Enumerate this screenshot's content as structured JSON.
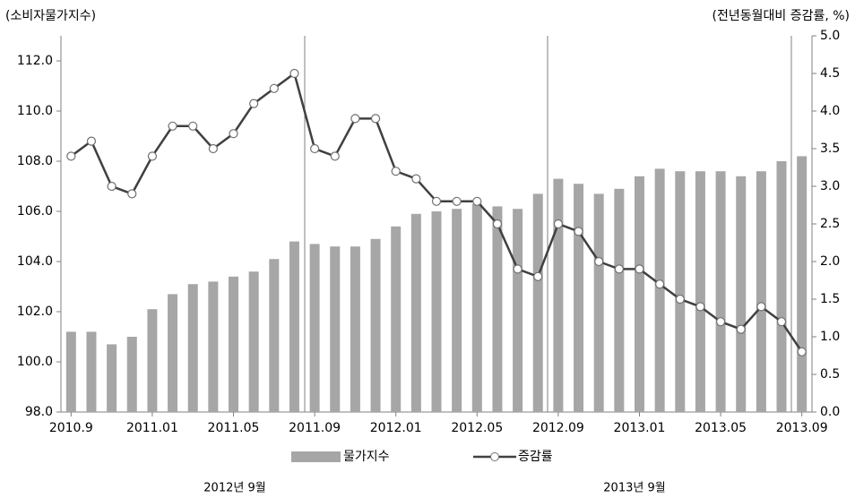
{
  "chart_data": {
    "type": "bar+line",
    "y_title": "(소비자물가지수)",
    "y2_title": "(전년동월대비 증감률, %)",
    "categories": [
      "2010.9",
      null,
      null,
      null,
      "2011.01",
      null,
      null,
      null,
      "2011.05",
      null,
      null,
      null,
      "2011.09",
      null,
      null,
      null,
      "2012.01",
      null,
      null,
      null,
      "2012.05",
      null,
      null,
      null,
      "2012.09",
      null,
      null,
      null,
      "2013.01",
      null,
      null,
      null,
      "2013.05",
      null,
      null,
      null,
      "2013.09"
    ],
    "series": [
      {
        "name": "물가지수",
        "type": "bar",
        "color": "#a6a6a6",
        "values": [
          101.2,
          101.2,
          100.7,
          101.0,
          102.1,
          102.7,
          103.1,
          103.2,
          103.4,
          103.6,
          104.1,
          104.8,
          104.7,
          104.6,
          104.6,
          104.9,
          105.4,
          105.9,
          106.0,
          106.1,
          106.3,
          106.2,
          106.1,
          106.7,
          107.3,
          107.1,
          106.7,
          106.9,
          107.4,
          107.7,
          107.6,
          107.6,
          107.6,
          107.4,
          107.6,
          108.0,
          108.2
        ]
      },
      {
        "name": "증감률",
        "type": "line",
        "axis": "y2",
        "color": "#404040",
        "values": [
          3.4,
          3.6,
          3.0,
          2.9,
          3.4,
          3.8,
          3.8,
          3.5,
          3.7,
          4.1,
          4.3,
          4.5,
          3.5,
          3.4,
          3.9,
          3.9,
          3.2,
          3.1,
          2.8,
          2.8,
          2.8,
          2.5,
          1.9,
          1.8,
          2.5,
          2.4,
          2.0,
          1.9,
          1.9,
          1.7,
          1.5,
          1.4,
          1.2,
          1.1,
          1.4,
          1.2,
          0.8
        ]
      }
    ],
    "ylim": [
      98,
      113
    ],
    "yticks": [
      {
        "value": 98,
        "label": "98.0"
      },
      {
        "value": 100,
        "label": "100.0"
      },
      {
        "value": 102,
        "label": "102.0"
      },
      {
        "value": 104,
        "label": "104.0"
      },
      {
        "value": 106,
        "label": "106.0"
      },
      {
        "value": 108,
        "label": "108.0"
      },
      {
        "value": 110,
        "label": "110.0"
      },
      {
        "value": 112,
        "label": "112.0"
      }
    ],
    "y2lim": [
      0,
      5
    ],
    "y2ticks": [
      {
        "value": 0,
        "label": "0.0"
      },
      {
        "value": 0.5,
        "label": "0.5"
      },
      {
        "value": 1,
        "label": "1.0"
      },
      {
        "value": 1.5,
        "label": "1.5"
      },
      {
        "value": 2,
        "label": "2.0"
      },
      {
        "value": 2.5,
        "label": "2.5"
      },
      {
        "value": 3,
        "label": "3.0"
      },
      {
        "value": 3.5,
        "label": "3.5"
      },
      {
        "value": 4,
        "label": "4.0"
      },
      {
        "value": 4.5,
        "label": "4.5"
      },
      {
        "value": 5,
        "label": "5.0"
      }
    ],
    "annotations": [
      "2012년 9월",
      "2013년 9월"
    ]
  }
}
